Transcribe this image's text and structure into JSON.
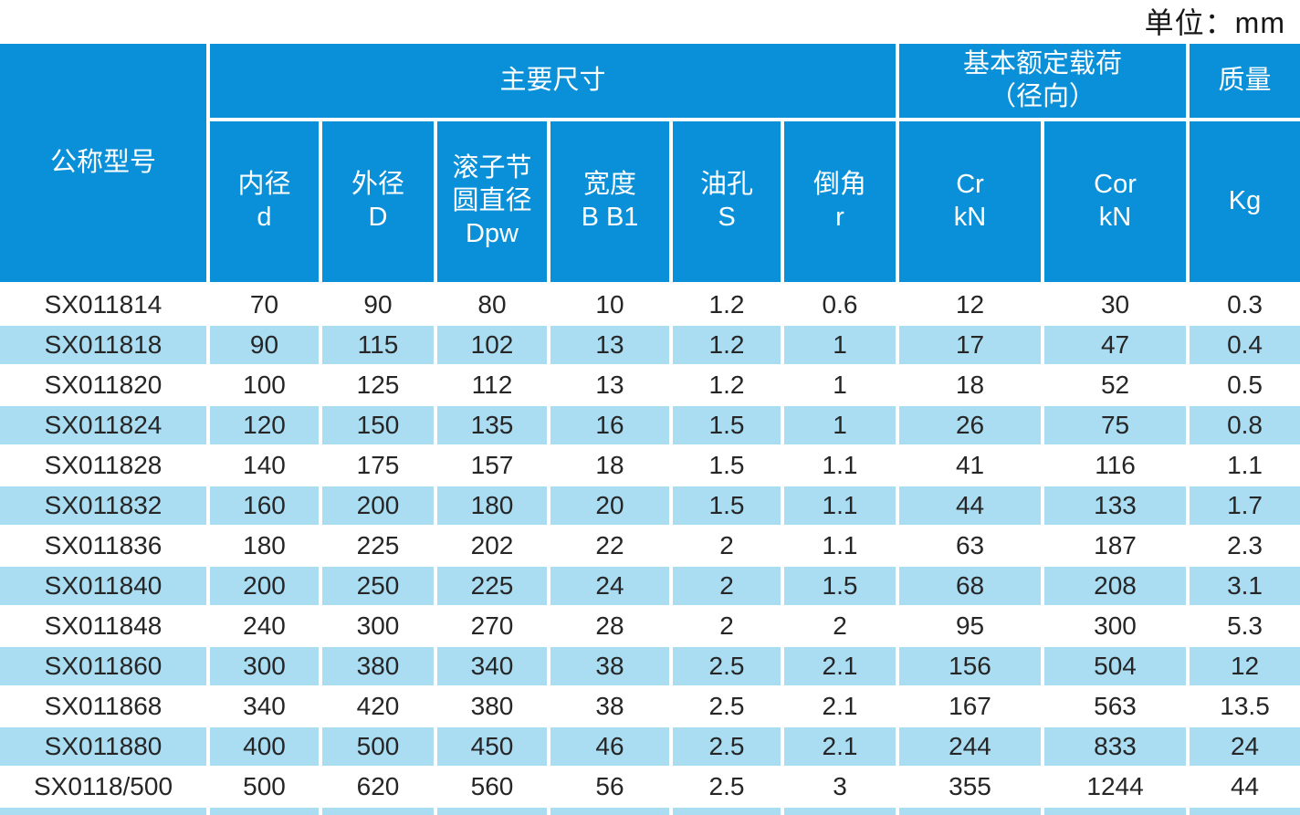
{
  "unit_label": "单位：mm",
  "colors": {
    "header_blue": "#0a90d8",
    "row_alt_blue": "#aadcf2",
    "header_text": "#ffffff",
    "body_text": "#262626"
  },
  "chart_data": {
    "type": "table",
    "header": {
      "model": "公称型号",
      "main_dimensions": "主要尺寸",
      "rated_load": "基本额定载荷\n（径向）",
      "mass": "质量",
      "subheaders": [
        "内径\nd",
        "外径\nD",
        "滚子节\n圆直径\nDpw",
        "宽度\nB B1",
        "油孔\nS",
        "倒角\nr",
        "Cr\nkN",
        "Cor\nkN",
        "Kg"
      ]
    },
    "rows": [
      [
        "SX011814",
        "70",
        "90",
        "80",
        "10",
        "1.2",
        "0.6",
        "12",
        "30",
        "0.3"
      ],
      [
        "SX011818",
        "90",
        "115",
        "102",
        "13",
        "1.2",
        "1",
        "17",
        "47",
        "0.4"
      ],
      [
        "SX011820",
        "100",
        "125",
        "112",
        "13",
        "1.2",
        "1",
        "18",
        "52",
        "0.5"
      ],
      [
        "SX011824",
        "120",
        "150",
        "135",
        "16",
        "1.5",
        "1",
        "26",
        "75",
        "0.8"
      ],
      [
        "SX011828",
        "140",
        "175",
        "157",
        "18",
        "1.5",
        "1.1",
        "41",
        "116",
        "1.1"
      ],
      [
        "SX011832",
        "160",
        "200",
        "180",
        "20",
        "1.5",
        "1.1",
        "44",
        "133",
        "1.7"
      ],
      [
        "SX011836",
        "180",
        "225",
        "202",
        "22",
        "2",
        "1.1",
        "63",
        "187",
        "2.3"
      ],
      [
        "SX011840",
        "200",
        "250",
        "225",
        "24",
        "2",
        "1.5",
        "68",
        "208",
        "3.1"
      ],
      [
        "SX011848",
        "240",
        "300",
        "270",
        "28",
        "2",
        "2",
        "95",
        "300",
        "5.3"
      ],
      [
        "SX011860",
        "300",
        "380",
        "340",
        "38",
        "2.5",
        "2.1",
        "156",
        "504",
        "12"
      ],
      [
        "SX011868",
        "340",
        "420",
        "380",
        "38",
        "2.5",
        "2.1",
        "167",
        "563",
        "13.5"
      ],
      [
        "SX011880",
        "400",
        "500",
        "450",
        "46",
        "2.5",
        "2.1",
        "244",
        "833",
        "24"
      ],
      [
        "SX0118/500",
        "500",
        "620",
        "560",
        "56",
        "2.5",
        "3",
        "355",
        "1244",
        "44"
      ]
    ],
    "partial_next_row_visible": true
  }
}
